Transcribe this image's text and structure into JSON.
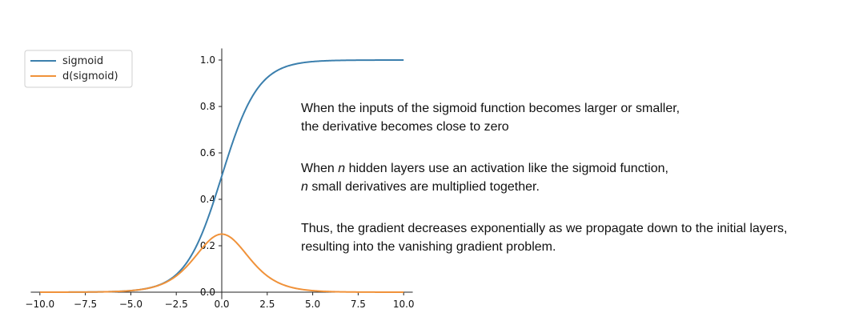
{
  "chart_data": {
    "type": "line",
    "title": "",
    "xlabel": "",
    "ylabel": "",
    "xlim": [
      -10.5,
      10.5
    ],
    "ylim": [
      -0.03,
      1.05
    ],
    "xticks": [
      -10.0,
      -7.5,
      -5.0,
      -2.5,
      0.0,
      2.5,
      5.0,
      7.5,
      10.0
    ],
    "xtick_labels": [
      "−10.0",
      "−7.5",
      "−5.0",
      "−2.5",
      "0.0",
      "2.5",
      "5.0",
      "7.5",
      "10.0"
    ],
    "yticks": [
      0.0,
      0.2,
      0.4,
      0.6,
      0.8,
      1.0
    ],
    "ytick_labels": [
      "0.0",
      "0.2",
      "0.4",
      "0.6",
      "0.8",
      "1.0"
    ],
    "x_range": [
      -10,
      10
    ],
    "spines": "centered at origin",
    "grid": false,
    "legend_position": "top-left",
    "series": [
      {
        "name": "sigmoid",
        "function": "sigmoid",
        "color": "#3b7fad"
      },
      {
        "name": "d(sigmoid)",
        "function": "sigmoid_derivative",
        "color": "#f0923a"
      }
    ]
  },
  "notes": {
    "p1": {
      "line1": "When the inputs of the sigmoid function becomes larger or smaller,",
      "line2": "the derivative becomes close to zero"
    },
    "p2": {
      "l1_pre": "When ",
      "l1_var": "n",
      "l1_post": " hidden layers use an activation like the sigmoid function,",
      "l2_var": "n",
      "l2_post": " small derivatives are multiplied together."
    },
    "p3": {
      "line1": "Thus, the gradient decreases exponentially as we propagate down to the initial layers,",
      "line2": "resulting into the vanishing gradient problem."
    }
  }
}
